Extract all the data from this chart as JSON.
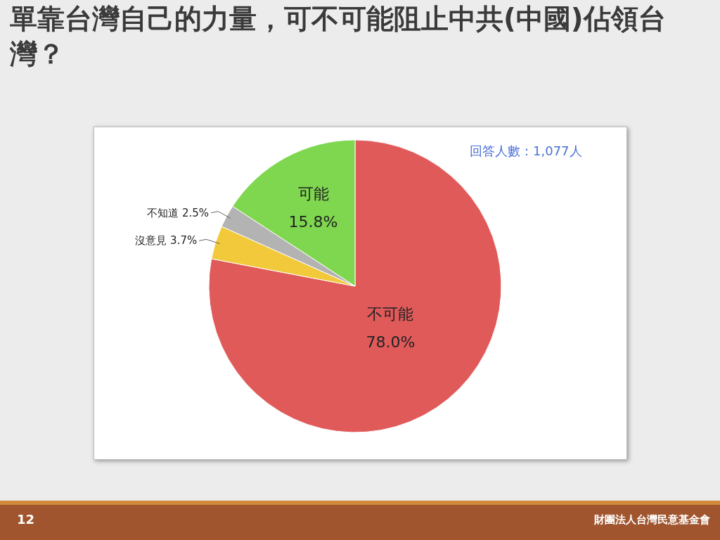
{
  "chart_data": {
    "type": "pie",
    "title": "單靠台灣自己的力量，可不可能阻止中共(中國)佔領台灣？",
    "categories": [
      "不可能",
      "沒意見",
      "不知道",
      "可能"
    ],
    "values": [
      78.0,
      3.7,
      2.5,
      15.8
    ],
    "colors": [
      "#e05a5a",
      "#f2c93a",
      "#b3b3b3",
      "#7fd64f"
    ],
    "value_labels": [
      "78.0%",
      "3.7%",
      "2.5%",
      "15.8%"
    ],
    "annotations": [
      "回答人數：1,077人",
      "12",
      "財團法人台灣民意基金會"
    ]
  }
}
